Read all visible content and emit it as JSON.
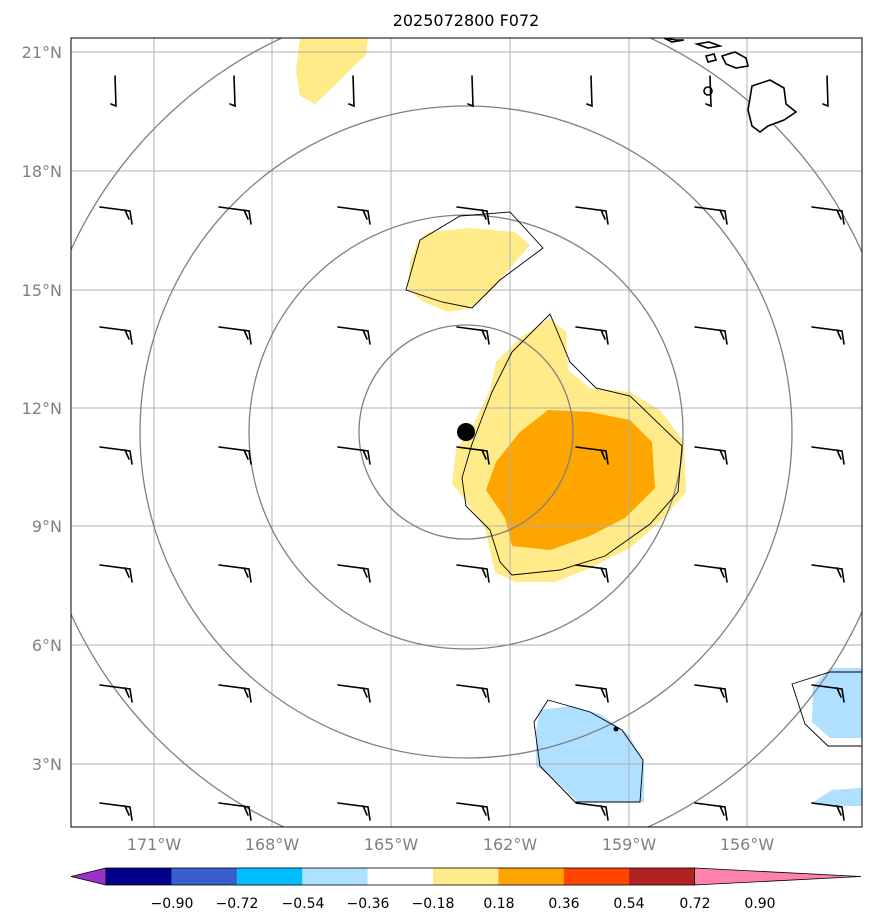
{
  "title": "2025072800 F072",
  "map": {
    "lat_ticks": [
      "21°N",
      "18°N",
      "15°N",
      "12°N",
      "9°N",
      "6°N",
      "3°N"
    ],
    "lon_ticks": [
      "171°W",
      "168°W",
      "165°W",
      "162°W",
      "159°W",
      "156°W"
    ]
  },
  "colorbar": {
    "labels": [
      "−0.90",
      "−0.72",
      "−0.54",
      "−0.36",
      "−0.18",
      "0.18",
      "0.36",
      "0.54",
      "0.72",
      "0.90"
    ],
    "colors": [
      "#9932cc",
      "#00008b",
      "#3a5fcd",
      "#00bfff",
      "#b0e0ff",
      "#ffffff",
      "#ffeb8a",
      "#ffa500",
      "#ff4500",
      "#b22222",
      "#ff82ab"
    ]
  },
  "colors": {
    "fill_positive_low": "#ffeb8a",
    "fill_positive_mid": "#ffa500",
    "fill_negative_low": "#b0e0ff"
  },
  "storm_marker": {
    "symbol": "filled-circle"
  }
}
